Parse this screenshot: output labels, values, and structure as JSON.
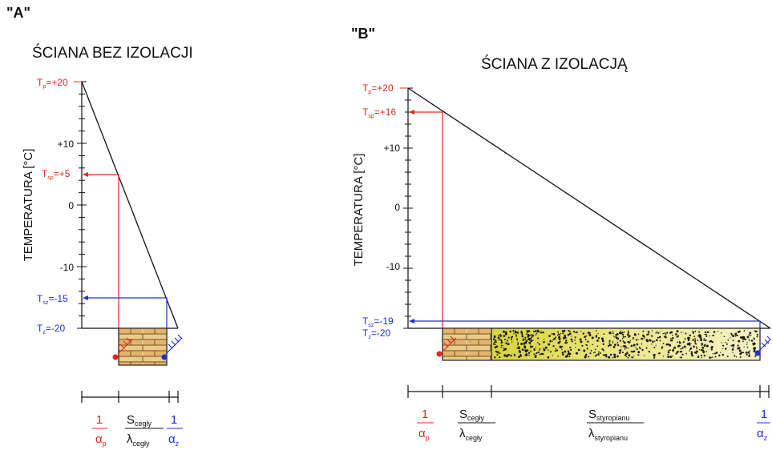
{
  "colors": {
    "red": "#e0281c",
    "blue": "#1f2fe0",
    "black": "#111111",
    "brick": "#e9c27a",
    "foam": "#e6e054"
  },
  "panel_a": {
    "tag": "\"A\"",
    "title": "ŚCIANA BEZ IZOLACJI",
    "axis_label": "TEMPERATURA [°C]",
    "ticks": [
      "+10",
      "0",
      "-10"
    ],
    "tp": {
      "main": "T",
      "sub": "p",
      "val": "=+20"
    },
    "tsp": {
      "main": "T",
      "sub": "sp",
      "val": "=+5"
    },
    "tsz": {
      "main": "T",
      "sub": "sz",
      "val": "=-15"
    },
    "tz": {
      "main": "T",
      "sub": "z",
      "val": "=-20"
    },
    "f1": {
      "num": "1",
      "den": "α",
      "den_sub": "p"
    },
    "f2": {
      "num": "S",
      "num_sub": "cegły",
      "den": "λ",
      "den_sub": "cegły"
    },
    "f3": {
      "num": "1",
      "den": "α",
      "den_sub": "z"
    }
  },
  "panel_b": {
    "tag": "\"B\"",
    "title": "ŚCIANA Z IZOLACJĄ",
    "axis_label": "TEMPERATURA [°C]",
    "ticks": [
      "+10",
      "0",
      "-10"
    ],
    "tp": {
      "main": "T",
      "sub": "p",
      "val": "=+20"
    },
    "tsp": {
      "main": "T",
      "sub": "sp",
      "val": "=+16"
    },
    "tsz": {
      "main": "T",
      "sub": "sz",
      "val": "=-19"
    },
    "tz": {
      "main": "T",
      "sub": "z",
      "val": "=-20"
    },
    "f1": {
      "num": "1",
      "den": "α",
      "den_sub": "p"
    },
    "f2": {
      "num": "S",
      "num_sub": "cegły",
      "den": "λ",
      "den_sub": "cegły"
    },
    "f3": {
      "num": "S",
      "num_sub": "styropianu",
      "den": "λ",
      "den_sub": "styropianu"
    },
    "f4": {
      "num": "1",
      "den": "α",
      "den_sub": "z"
    }
  }
}
